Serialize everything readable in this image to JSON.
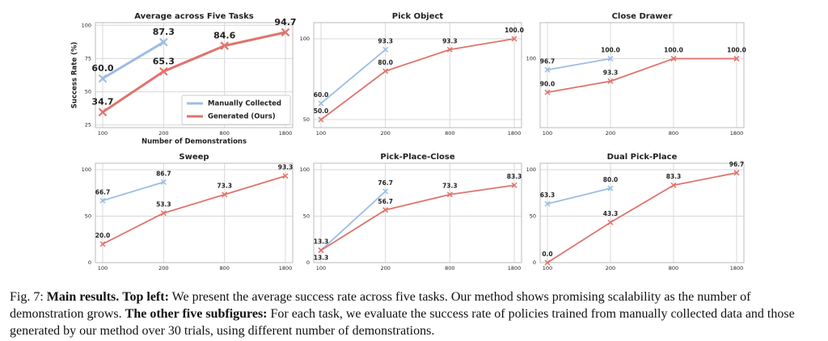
{
  "chart_data": [
    {
      "type": "line",
      "title": "Average across Five Tasks",
      "x_label": "Number of Demonstrations",
      "y_label": "Success Rate (%)",
      "categories": [
        "100",
        "200",
        "800",
        "1800"
      ],
      "series": [
        {
          "name": "Manually Collected",
          "color": "#9dbde3",
          "values": [
            60.0,
            87.3,
            null,
            null
          ],
          "value_labels": [
            "60.0",
            "87.3",
            null,
            null
          ]
        },
        {
          "name": "Generated (Ours)",
          "color": "#e0736c",
          "values": [
            34.7,
            65.3,
            84.6,
            94.7
          ],
          "value_labels": [
            "34.7",
            "65.3",
            "84.6",
            "94.7"
          ]
        }
      ],
      "ylim": [
        23,
        102
      ],
      "yticks": [
        25,
        50,
        75,
        100
      ],
      "grid": true,
      "legend": "lower right"
    },
    {
      "type": "line",
      "title": "Pick Object",
      "categories": [
        "100",
        "200",
        "800",
        "1800"
      ],
      "series": [
        {
          "name": "Manually Collected",
          "color": "#9dbde3",
          "values": [
            60.0,
            93.3,
            null,
            null
          ],
          "value_labels": [
            "60.0",
            "93.3",
            null,
            null
          ]
        },
        {
          "name": "Generated (Ours)",
          "color": "#e0736c",
          "values": [
            50.0,
            80.0,
            93.3,
            100.0
          ],
          "value_labels": [
            "50.0",
            "80.0",
            "93.3",
            "100.0"
          ]
        }
      ],
      "ylim": [
        45,
        110
      ],
      "yticks": [
        50,
        100
      ],
      "grid": true
    },
    {
      "type": "line",
      "title": "Close Drawer",
      "categories": [
        "100",
        "200",
        "800",
        "1800"
      ],
      "series": [
        {
          "name": "Manually Collected",
          "color": "#9dbde3",
          "values": [
            96.7,
            100.0,
            null,
            null
          ],
          "value_labels": [
            "96.7",
            "100.0",
            null,
            null
          ]
        },
        {
          "name": "Generated (Ours)",
          "color": "#e0736c",
          "values": [
            90.0,
            93.3,
            100.0,
            100.0
          ],
          "value_labels": [
            "90.0",
            "93.3",
            "100.0",
            "100.0"
          ]
        }
      ],
      "ylim": [
        79.5,
        110.7
      ],
      "yticks": [
        100
      ],
      "grid": true
    },
    {
      "type": "line",
      "title": "Sweep",
      "categories": [
        "100",
        "200",
        "800",
        "1800"
      ],
      "series": [
        {
          "name": "Manually Collected",
          "color": "#9dbde3",
          "values": [
            66.7,
            86.7,
            null,
            null
          ],
          "value_labels": [
            "66.7",
            "86.7",
            null,
            null
          ]
        },
        {
          "name": "Generated (Ours)",
          "color": "#e0736c",
          "values": [
            20.0,
            53.3,
            73.3,
            93.3
          ],
          "value_labels": [
            "20.0",
            "53.3",
            "73.3",
            "93.3"
          ]
        }
      ],
      "ylim": [
        0,
        107
      ],
      "yticks": [
        0,
        50,
        100
      ],
      "grid": true
    },
    {
      "type": "line",
      "title": "Pick-Place-Close",
      "categories": [
        "100",
        "200",
        "800",
        "1800"
      ],
      "series": [
        {
          "name": "Manually Collected",
          "color": "#9dbde3",
          "values": [
            13.3,
            76.7,
            null,
            null
          ],
          "value_labels": [
            "13.3",
            "76.7",
            null,
            null
          ]
        },
        {
          "name": "Generated (Ours)",
          "color": "#e0736c",
          "values": [
            13.3,
            56.7,
            73.3,
            83.3
          ],
          "value_labels": [
            "13.3",
            "56.7",
            "73.3",
            "83.3"
          ]
        }
      ],
      "ylim": [
        0,
        107
      ],
      "yticks": [
        0,
        50,
        100
      ],
      "grid": true
    },
    {
      "type": "line",
      "title": "Dual Pick-Place",
      "categories": [
        "100",
        "200",
        "800",
        "1800"
      ],
      "series": [
        {
          "name": "Manually Collected",
          "color": "#9dbde3",
          "values": [
            63.3,
            80.0,
            null,
            null
          ],
          "value_labels": [
            "63.3",
            "80.0",
            null,
            null
          ]
        },
        {
          "name": "Generated (Ours)",
          "color": "#e0736c",
          "values": [
            0.0,
            43.3,
            83.3,
            96.7
          ],
          "value_labels": [
            "0.0",
            "43.3",
            "83.3",
            "96.7"
          ]
        }
      ],
      "ylim": [
        0,
        107
      ],
      "yticks": [
        0,
        50,
        100
      ],
      "grid": true
    }
  ],
  "caption": {
    "figure": "Fig. 7:",
    "heading_1": "Main results.",
    "heading_2": "Top left:",
    "text_1": "We present the average success rate across five tasks. Our method shows promising scalability as the number of demonstration grows.",
    "heading_3": "The other five subfigures:",
    "text_2": "For each task, we evaluate the success rate of policies trained from manually collected data and those generated by our method over 30 trials, using different number of demonstrations."
  }
}
